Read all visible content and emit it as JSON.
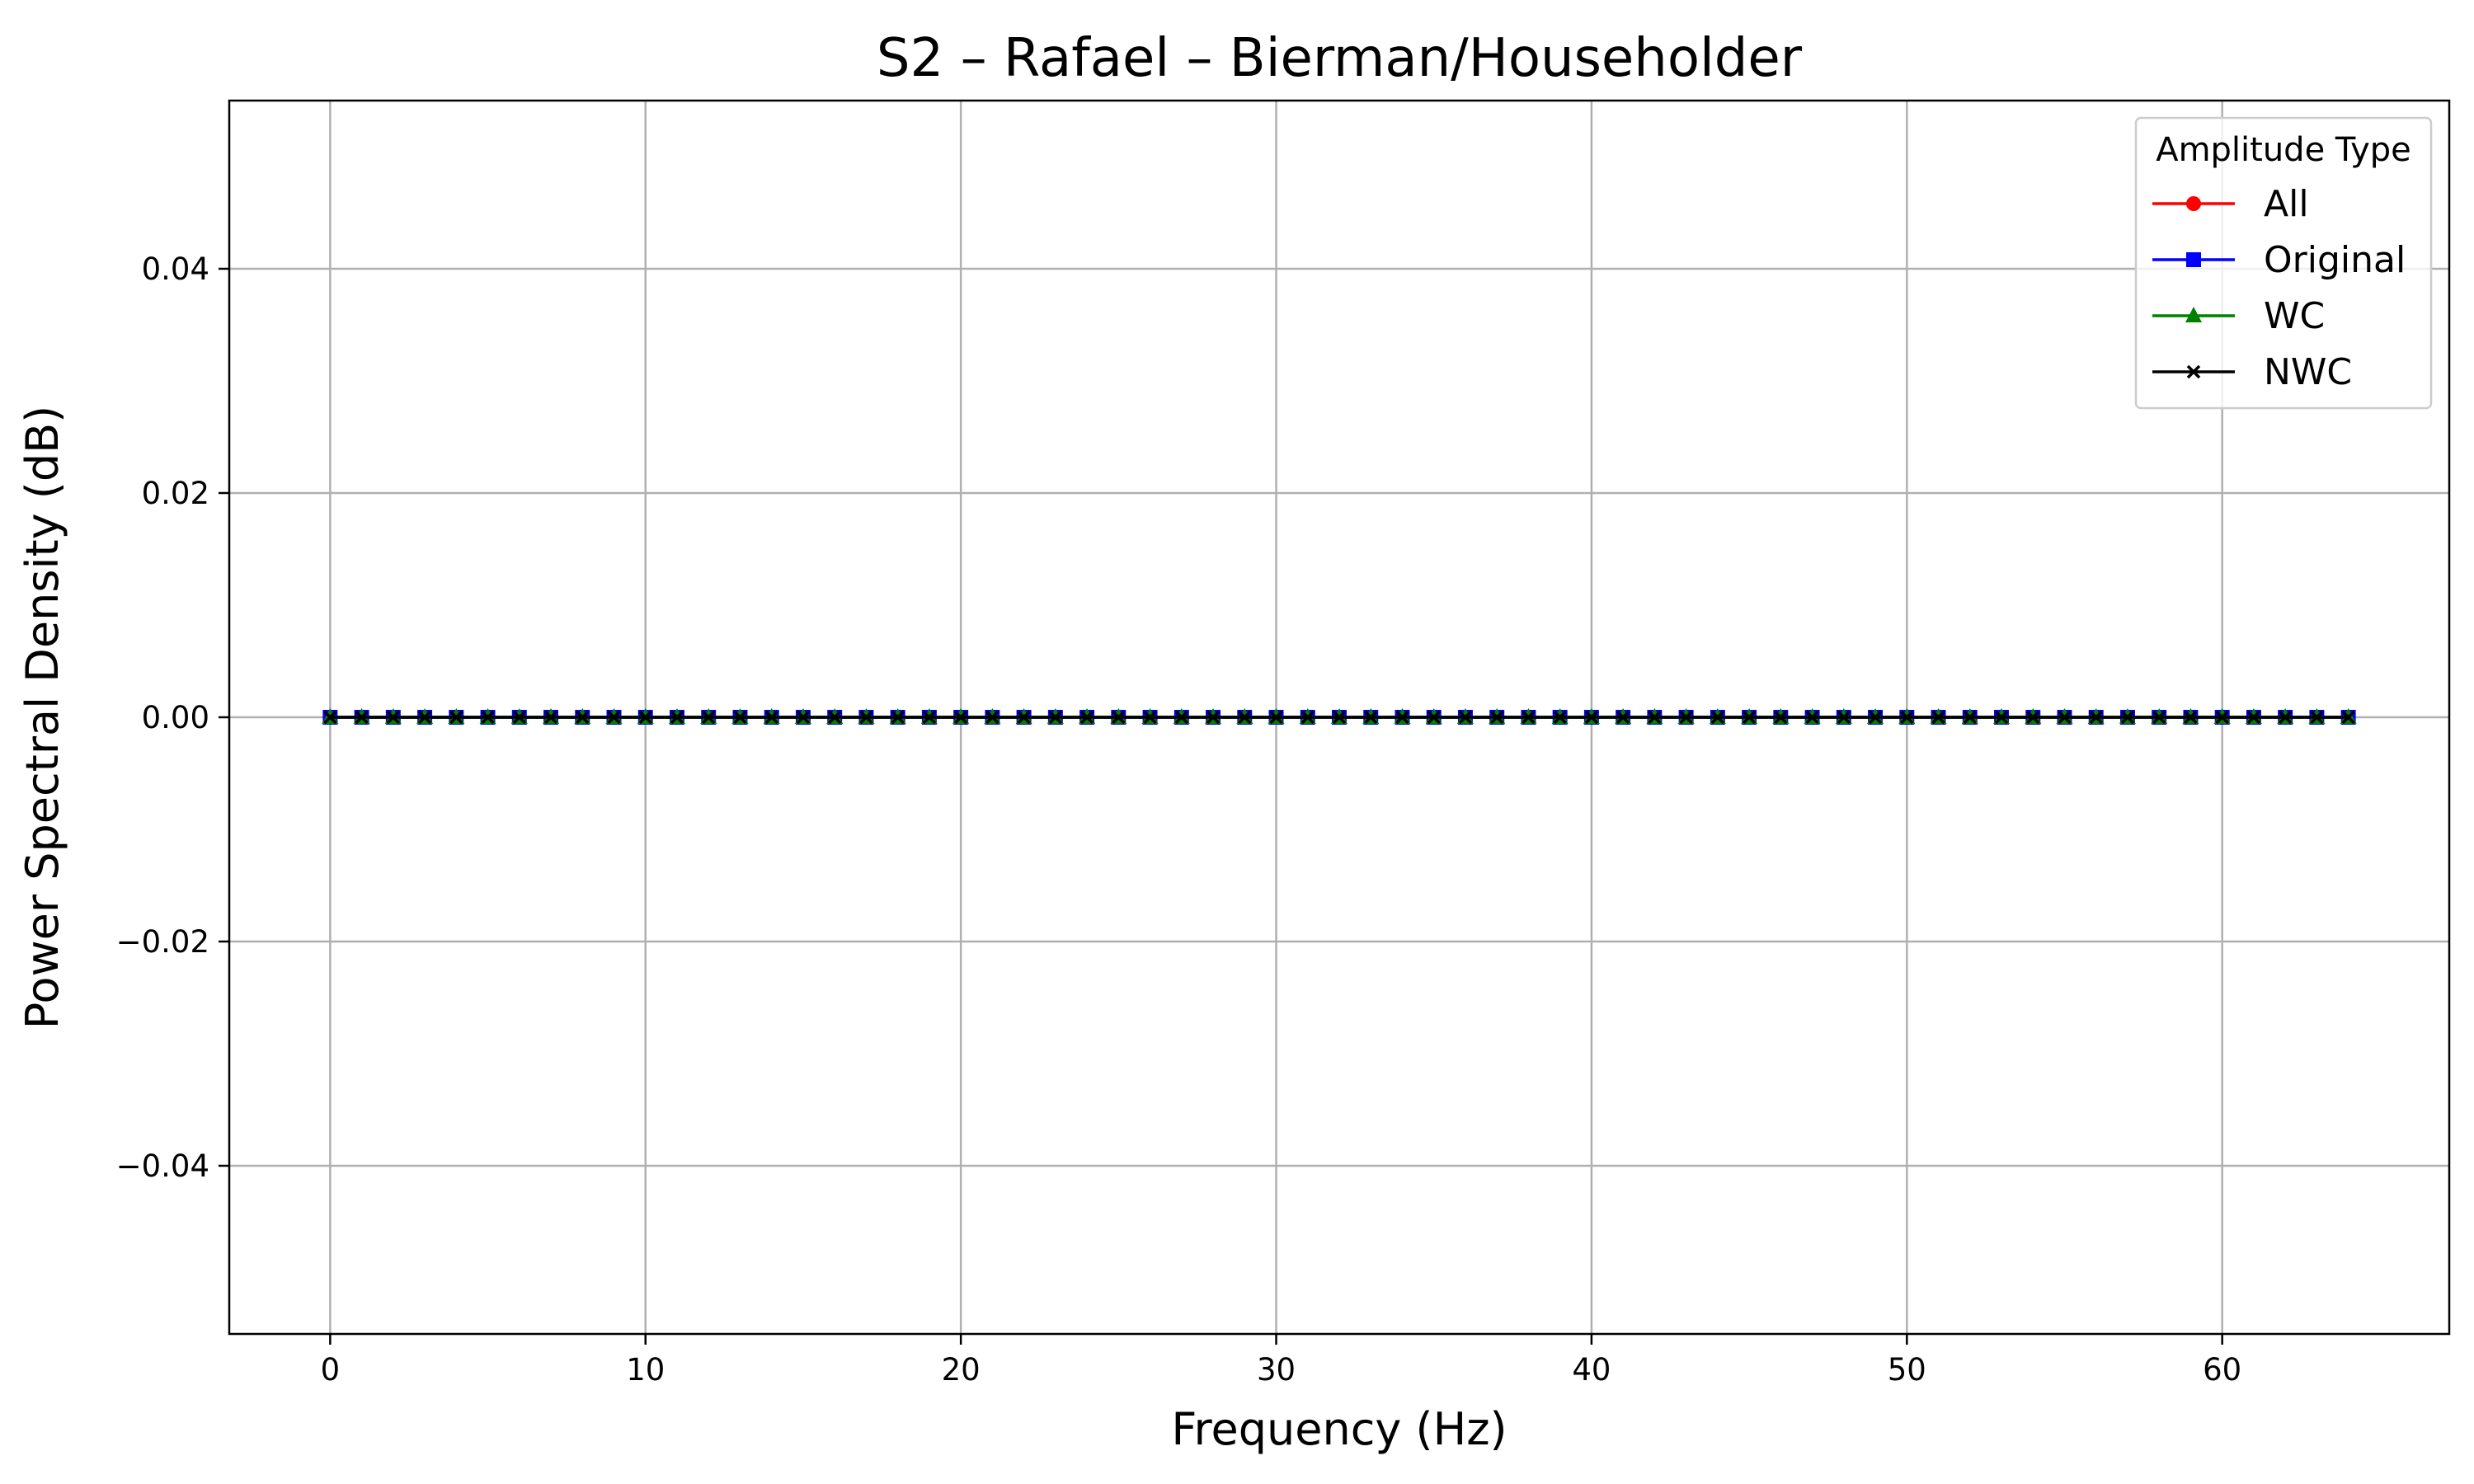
{
  "chart_data": {
    "type": "line",
    "title": "S2 – Rafael – Bierman/Householder",
    "xlabel": "Frequency (Hz)",
    "ylabel": "Power Spectral Density (dB)",
    "xlim": [
      -3.2,
      67.2
    ],
    "ylim": [
      -0.055,
      0.055
    ],
    "xticks": [
      0,
      10,
      20,
      30,
      40,
      50,
      60
    ],
    "xtick_labels": [
      "0",
      "10",
      "20",
      "30",
      "40",
      "50",
      "60"
    ],
    "yticks": [
      0.04,
      0.02,
      0.0,
      -0.02,
      -0.04
    ],
    "ytick_labels": [
      "0.04",
      "0.02",
      "0.00",
      "−0.02",
      "−0.04"
    ],
    "grid": true,
    "legend": {
      "title": "Amplitude Type",
      "placement": "top-right"
    },
    "x": [
      0,
      1,
      2,
      3,
      4,
      5,
      6,
      7,
      8,
      9,
      10,
      11,
      12,
      13,
      14,
      15,
      16,
      17,
      18,
      19,
      20,
      21,
      22,
      23,
      24,
      25,
      26,
      27,
      28,
      29,
      30,
      31,
      32,
      33,
      34,
      35,
      36,
      37,
      38,
      39,
      40,
      41,
      42,
      43,
      44,
      45,
      46,
      47,
      48,
      49,
      50,
      51,
      52,
      53,
      54,
      55,
      56,
      57,
      58,
      59,
      60,
      61,
      62,
      63,
      64
    ],
    "series": [
      {
        "name": "All",
        "color": "#ff0000",
        "marker": "circle",
        "values": [
          0,
          0,
          0,
          0,
          0,
          0,
          0,
          0,
          0,
          0,
          0,
          0,
          0,
          0,
          0,
          0,
          0,
          0,
          0,
          0,
          0,
          0,
          0,
          0,
          0,
          0,
          0,
          0,
          0,
          0,
          0,
          0,
          0,
          0,
          0,
          0,
          0,
          0,
          0,
          0,
          0,
          0,
          0,
          0,
          0,
          0,
          0,
          0,
          0,
          0,
          0,
          0,
          0,
          0,
          0,
          0,
          0,
          0,
          0,
          0,
          0,
          0,
          0,
          0,
          0
        ]
      },
      {
        "name": "Original",
        "color": "#0000ff",
        "marker": "square",
        "values": [
          0,
          0,
          0,
          0,
          0,
          0,
          0,
          0,
          0,
          0,
          0,
          0,
          0,
          0,
          0,
          0,
          0,
          0,
          0,
          0,
          0,
          0,
          0,
          0,
          0,
          0,
          0,
          0,
          0,
          0,
          0,
          0,
          0,
          0,
          0,
          0,
          0,
          0,
          0,
          0,
          0,
          0,
          0,
          0,
          0,
          0,
          0,
          0,
          0,
          0,
          0,
          0,
          0,
          0,
          0,
          0,
          0,
          0,
          0,
          0,
          0,
          0,
          0,
          0,
          0
        ]
      },
      {
        "name": "WC",
        "color": "#008000",
        "marker": "triangle",
        "values": [
          0,
          0,
          0,
          0,
          0,
          0,
          0,
          0,
          0,
          0,
          0,
          0,
          0,
          0,
          0,
          0,
          0,
          0,
          0,
          0,
          0,
          0,
          0,
          0,
          0,
          0,
          0,
          0,
          0,
          0,
          0,
          0,
          0,
          0,
          0,
          0,
          0,
          0,
          0,
          0,
          0,
          0,
          0,
          0,
          0,
          0,
          0,
          0,
          0,
          0,
          0,
          0,
          0,
          0,
          0,
          0,
          0,
          0,
          0,
          0,
          0,
          0,
          0,
          0,
          0
        ]
      },
      {
        "name": "NWC",
        "color": "#000000",
        "marker": "x",
        "values": [
          0,
          0,
          0,
          0,
          0,
          0,
          0,
          0,
          0,
          0,
          0,
          0,
          0,
          0,
          0,
          0,
          0,
          0,
          0,
          0,
          0,
          0,
          0,
          0,
          0,
          0,
          0,
          0,
          0,
          0,
          0,
          0,
          0,
          0,
          0,
          0,
          0,
          0,
          0,
          0,
          0,
          0,
          0,
          0,
          0,
          0,
          0,
          0,
          0,
          0,
          0,
          0,
          0,
          0,
          0,
          0,
          0,
          0,
          0,
          0,
          0,
          0,
          0,
          0,
          0
        ]
      }
    ]
  }
}
